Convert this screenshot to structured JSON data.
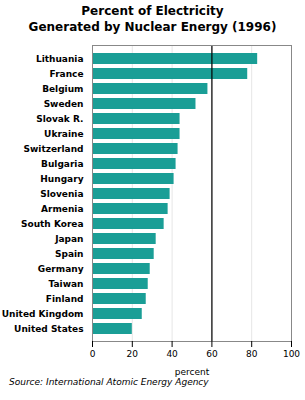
{
  "chart_data": {
    "type": "bar",
    "orientation": "horizontal",
    "title": "Percent of Electricity\nGenerated by Nuclear Energy (1996)",
    "categories": [
      "United States",
      "United Kingdom",
      "Finland",
      "Taiwan",
      "Germany",
      "Spain",
      "Japan",
      "South Korea",
      "Armenia",
      "Slovenia",
      "Hungary",
      "Bulgaria",
      "Switzerland",
      "Ukraine",
      "Slovak R.",
      "Sweden",
      "Belgium",
      "France",
      "Lithuania"
    ],
    "values": [
      20,
      25,
      27,
      28,
      29,
      31,
      32,
      36,
      38,
      39,
      41,
      42,
      43,
      44,
      44,
      52,
      58,
      78,
      83
    ],
    "color": "#1a9e96",
    "xlabel": "percent",
    "xlim": [
      0,
      100
    ],
    "xticks": [
      0,
      20,
      40,
      60,
      80,
      100
    ],
    "grid": true,
    "reference_line_x": 60,
    "source": "Source: International Atomic Energy Agency"
  }
}
